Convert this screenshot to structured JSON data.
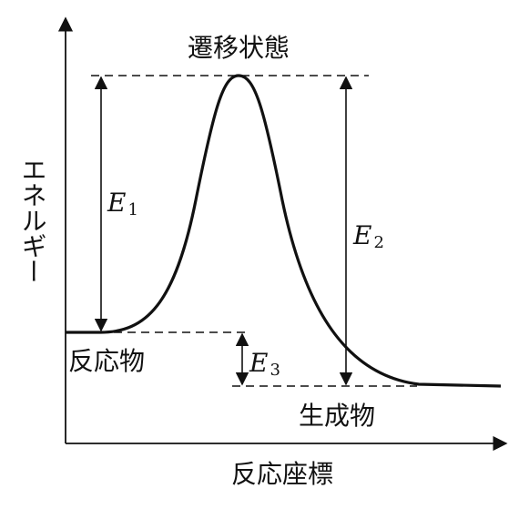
{
  "diagram": {
    "axis_labels": {
      "y": "エネルギー",
      "x": "反応座標"
    },
    "states": {
      "transition": "遷移状態",
      "reactant": "反応物",
      "product": "生成物"
    },
    "energies": [
      {
        "symbol": "E",
        "subscript": "1"
      },
      {
        "symbol": "E",
        "subscript": "2"
      },
      {
        "symbol": "E",
        "subscript": "3"
      }
    ]
  }
}
